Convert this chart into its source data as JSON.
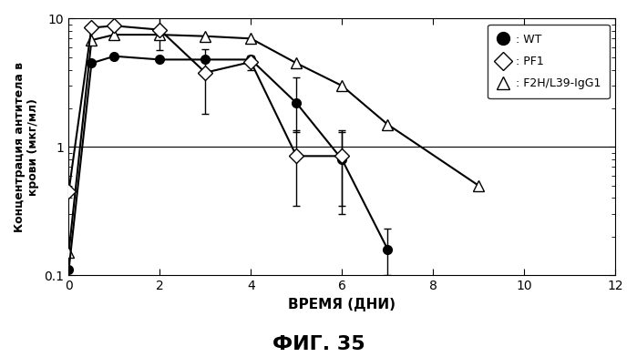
{
  "title": "ФИГ. 35",
  "xlabel": "ВРЕМЯ (ДНИ)",
  "ylabel": "Концентрация антитела в\nкрови (мкг/мл)",
  "xlim": [
    0,
    12
  ],
  "ylim_log": [
    0.1,
    10
  ],
  "hline": 1.0,
  "WT": {
    "x": [
      0,
      0.5,
      1,
      2,
      3,
      4,
      5,
      6,
      7
    ],
    "y": [
      0.11,
      4.5,
      5.1,
      4.8,
      4.8,
      4.8,
      2.2,
      0.8,
      0.16
    ],
    "yerr_low": [
      0,
      0,
      0,
      0,
      0,
      0,
      0.9,
      0.5,
      0.06
    ],
    "yerr_high": [
      0,
      0,
      0,
      0,
      0,
      0,
      1.3,
      0.5,
      0.07
    ],
    "color": "black",
    "markerfacecolor": "black"
  },
  "PF1": {
    "x": [
      0,
      0.5,
      1,
      2,
      3,
      4,
      5,
      6
    ],
    "y": [
      0.45,
      8.5,
      8.8,
      8.2,
      3.8,
      4.6,
      0.85,
      0.85
    ],
    "yerr_low": [
      0,
      0.4,
      0.3,
      2.5,
      2.0,
      0.6,
      0.5,
      0.5
    ],
    "yerr_high": [
      0,
      0.4,
      0.3,
      2.5,
      2.0,
      0.6,
      0.5,
      0.5
    ],
    "color": "black",
    "markerfacecolor": "white"
  },
  "F2H": {
    "x": [
      0,
      0.5,
      1,
      2,
      3,
      4,
      5,
      6,
      7,
      9
    ],
    "y": [
      0.15,
      6.8,
      7.5,
      7.5,
      7.3,
      7.0,
      4.5,
      3.0,
      1.5,
      0.5
    ],
    "color": "black",
    "markerfacecolor": "white"
  },
  "background_color": "white",
  "xticks": [
    0,
    2,
    4,
    6,
    8,
    10,
    12
  ],
  "yticks": [
    0.1,
    1,
    10
  ]
}
